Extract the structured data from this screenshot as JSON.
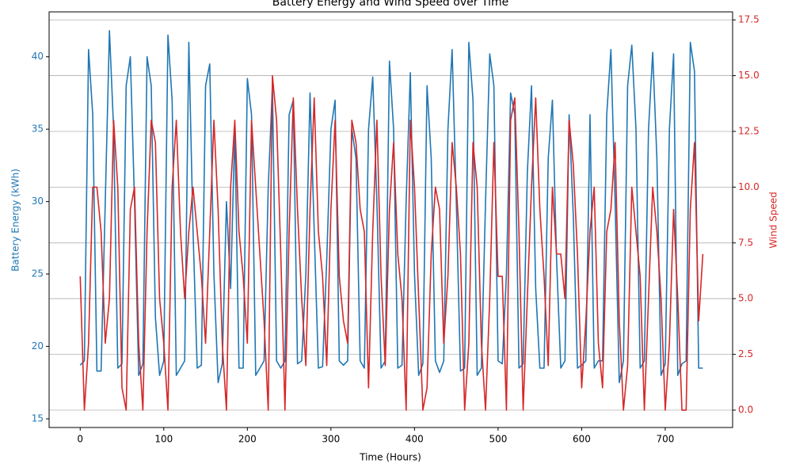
{
  "chart_data": {
    "type": "line",
    "title": "Battery Energy and Wind Speed over Time",
    "x_label": "Time (Hours)",
    "y_label": "Battery Energy (kWh)",
    "y2_label": "Wind Speed",
    "x": [
      0,
      5,
      10,
      15,
      20,
      25,
      30,
      35,
      40,
      45,
      50,
      55,
      60,
      65,
      70,
      75,
      80,
      85,
      90,
      95,
      100,
      105,
      110,
      115,
      120,
      125,
      130,
      135,
      140,
      145,
      150,
      155,
      160,
      165,
      170,
      175,
      180,
      185,
      190,
      195,
      200,
      205,
      210,
      215,
      220,
      225,
      230,
      235,
      240,
      245,
      250,
      255,
      260,
      265,
      270,
      275,
      280,
      285,
      290,
      295,
      300,
      305,
      310,
      315,
      320,
      325,
      330,
      335,
      340,
      345,
      350,
      355,
      360,
      365,
      370,
      375,
      380,
      385,
      390,
      395,
      400,
      405,
      410,
      415,
      420,
      425,
      430,
      435,
      440,
      445,
      450,
      455,
      460,
      465,
      470,
      475,
      480,
      485,
      490,
      495,
      500,
      505,
      510,
      515,
      520,
      525,
      530,
      535,
      540,
      545,
      550,
      555,
      560,
      565,
      570,
      575,
      580,
      585,
      590,
      595,
      600,
      605,
      610,
      615,
      620,
      625,
      630,
      635,
      640,
      645,
      650,
      655,
      660,
      665,
      670,
      675,
      680,
      685,
      690,
      695,
      700,
      705,
      710,
      715,
      720,
      725,
      730,
      735,
      740,
      745
    ],
    "series": [
      {
        "color": "#1f77b4",
        "axis": "y",
        "values": [
          18.7,
          19,
          40.5,
          36,
          18.3,
          18.3,
          30,
          41.8,
          35,
          18.5,
          18.8,
          38,
          40,
          30,
          18,
          18.8,
          40,
          38,
          22,
          18,
          19,
          41.5,
          37,
          18,
          18.5,
          19,
          41,
          28,
          18.5,
          18.7,
          38,
          39.5,
          25,
          17.5,
          18.8,
          30,
          24,
          35,
          18.5,
          18.5,
          38.5,
          36,
          18,
          18.5,
          19,
          31,
          38,
          19,
          18.5,
          19,
          36,
          37,
          18.8,
          19,
          25,
          37.5,
          28,
          18.5,
          18.6,
          26,
          35,
          37,
          19,
          18.7,
          19,
          35,
          33,
          19,
          18.5,
          35,
          38.6,
          30,
          18.5,
          19,
          39.7,
          35,
          18.5,
          18.7,
          30,
          38.9,
          25,
          18,
          18.8,
          38,
          33,
          19,
          18.2,
          19,
          35,
          40.5,
          30,
          18.3,
          18.5,
          41,
          37,
          18,
          18.5,
          30,
          40.2,
          38,
          19,
          18.8,
          25,
          37.5,
          36,
          18.5,
          18.8,
          32,
          38,
          24,
          18.5,
          18.5,
          33,
          37,
          26,
          18.5,
          19,
          36,
          29,
          18.5,
          18.7,
          19,
          36,
          18.5,
          19,
          19,
          36,
          40.5,
          30,
          17.5,
          19,
          38,
          40.8,
          35,
          18.5,
          19,
          35,
          40.3,
          33,
          18,
          18.8,
          35,
          40.2,
          18,
          18.8,
          19,
          41,
          39,
          18.5,
          18.5
        ]
      },
      {
        "color": "#d62728",
        "axis": "y2",
        "values": [
          6,
          0,
          3,
          10,
          10,
          8,
          3,
          5,
          13,
          10,
          1,
          0,
          9,
          10,
          3,
          0,
          8,
          13,
          12,
          5,
          3,
          0,
          10,
          13,
          8,
          5,
          8,
          10,
          8,
          6,
          3,
          8,
          13,
          9,
          3,
          0,
          10,
          13,
          8,
          6,
          3,
          13,
          10,
          7,
          4,
          0,
          15,
          13,
          7,
          0,
          8,
          14,
          9,
          5,
          2,
          9,
          14,
          8,
          6,
          2,
          9,
          13,
          6,
          4,
          3,
          13,
          12,
          9,
          8,
          1,
          8,
          13,
          6,
          2,
          9,
          12,
          7,
          5,
          0,
          13,
          10,
          5,
          0,
          1,
          7,
          10,
          9,
          3,
          6,
          12,
          10,
          7,
          0,
          3,
          12,
          10,
          3,
          0,
          5,
          12,
          6,
          6,
          0,
          13,
          14,
          8,
          0,
          5,
          10,
          14,
          9,
          6,
          2,
          10,
          7,
          7,
          5,
          13,
          11,
          7,
          1,
          4,
          8,
          10,
          3,
          1,
          8,
          9,
          12,
          4,
          0,
          2,
          10,
          8,
          6,
          0,
          5,
          10,
          8,
          5,
          0,
          3,
          9,
          5,
          0,
          0,
          9,
          12,
          4,
          7
        ]
      }
    ],
    "xlim": [
      -37.2,
      780.6
    ],
    "ylim": [
      14.4,
      43.1
    ],
    "y2lim": [
      -0.78,
      17.86
    ],
    "xticks": [
      0,
      100,
      200,
      300,
      400,
      500,
      600,
      700
    ],
    "yticks": [
      15,
      20,
      25,
      30,
      35,
      40
    ],
    "y2ticks": [
      {
        "value": 0,
        "label": "0.0"
      },
      2.5,
      {
        "value": 5,
        "label": "5.0"
      },
      7.5,
      {
        "value": 10,
        "label": "10.0"
      },
      12.5,
      {
        "value": 15,
        "label": "15.0"
      },
      17.5
    ],
    "grid": "y2"
  }
}
